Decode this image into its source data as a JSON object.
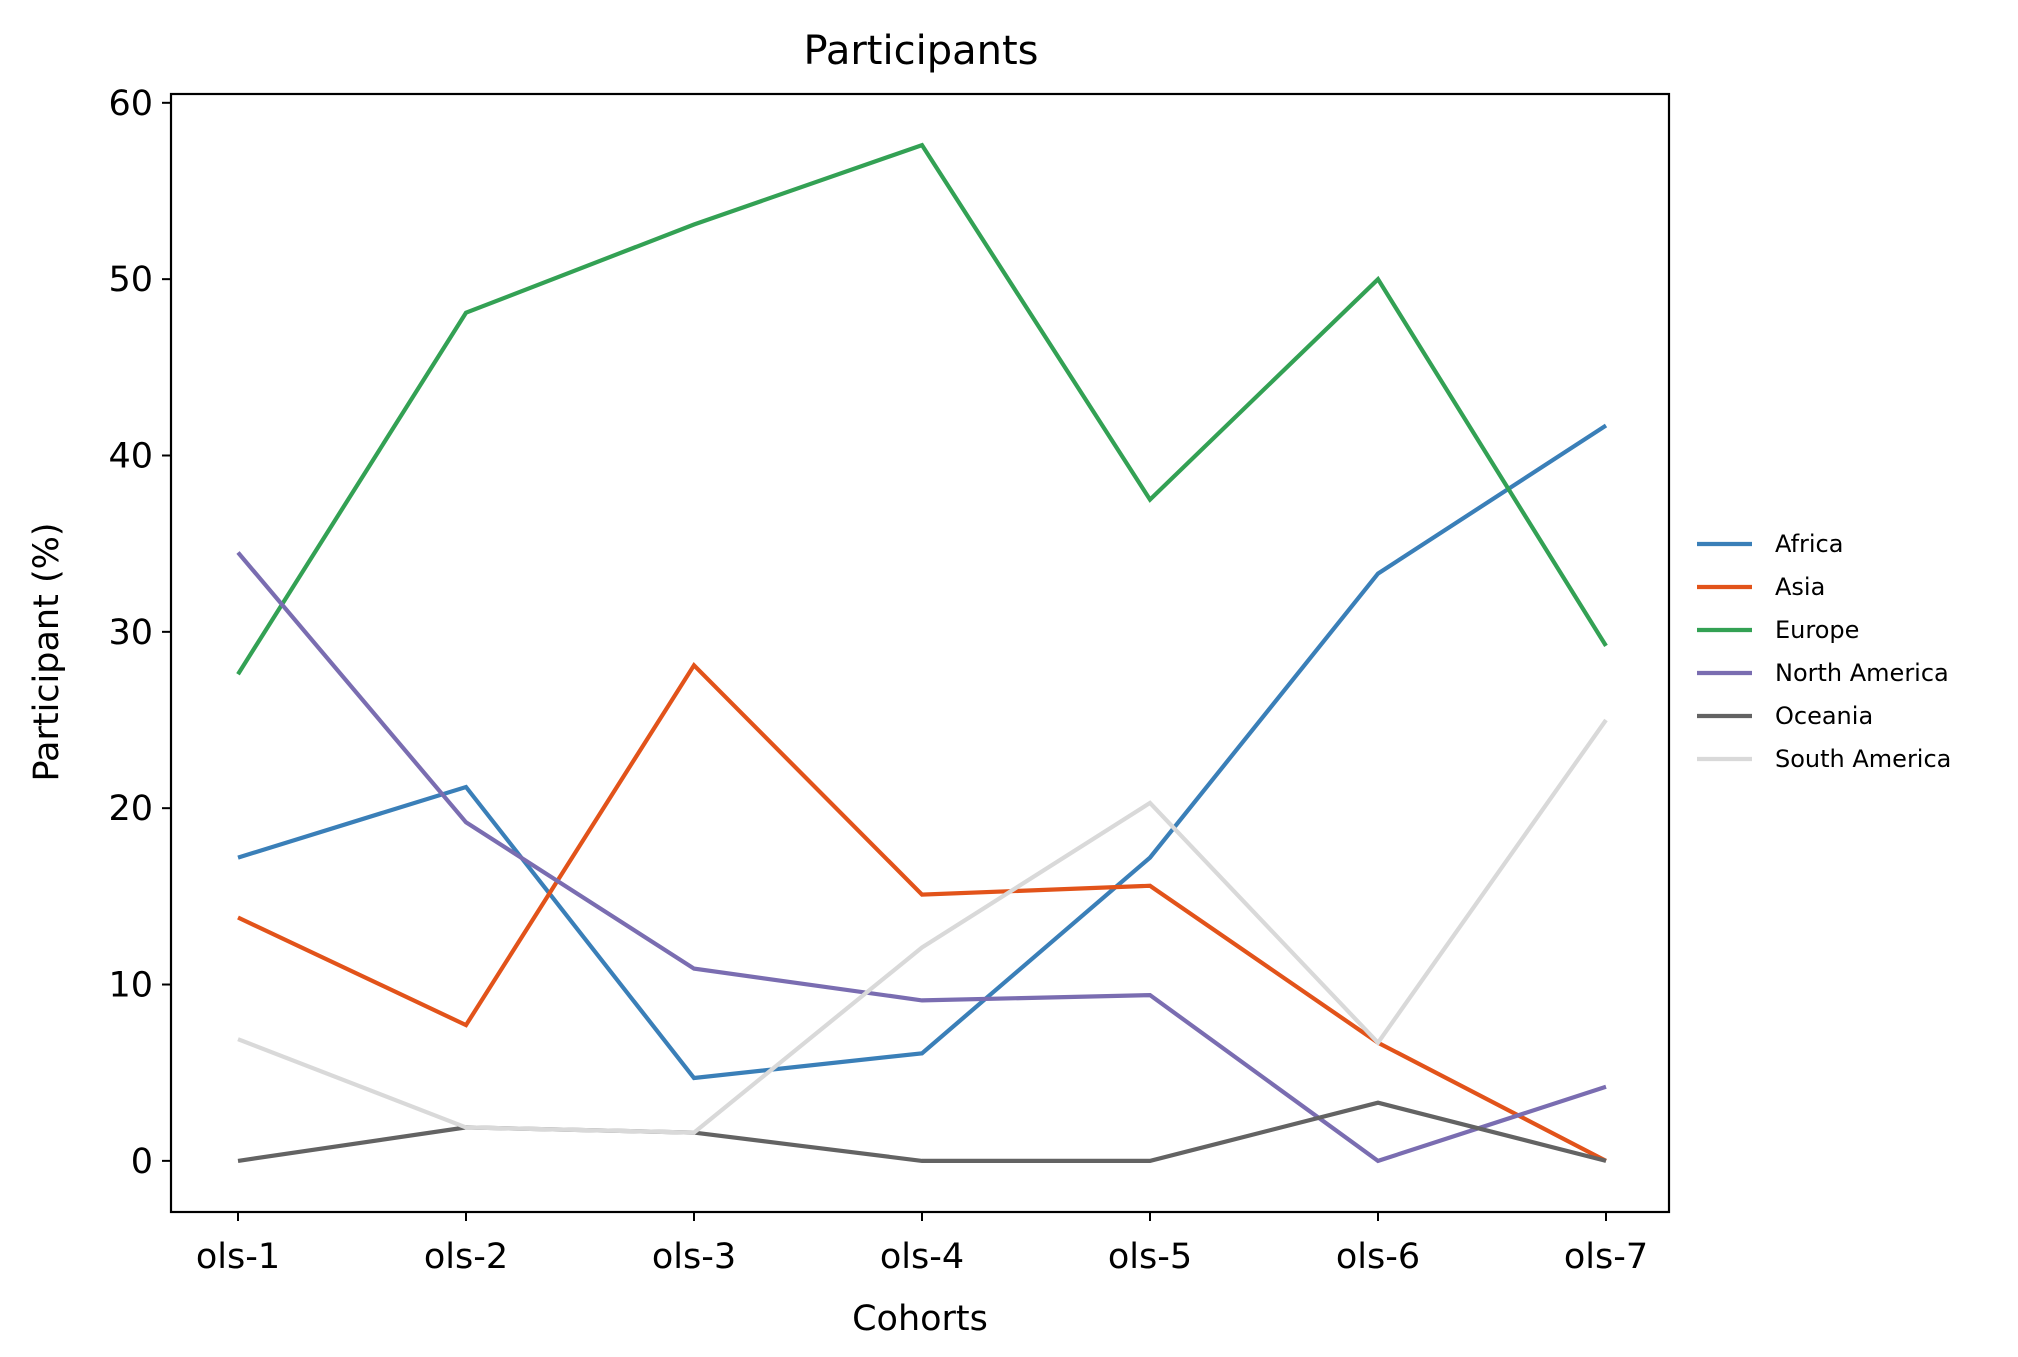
{
  "chart_data": {
    "type": "line",
    "title": "Participants",
    "xlabel": "Cohorts",
    "ylabel": "Participant (%)",
    "categories": [
      "ols-1",
      "ols-2",
      "ols-3",
      "ols-4",
      "ols-5",
      "ols-6",
      "ols-7"
    ],
    "ylim": [
      -2.9,
      60.5
    ],
    "yticks": [
      0,
      10,
      20,
      30,
      40,
      50,
      60
    ],
    "grid": false,
    "legend_position": "right",
    "series": [
      {
        "name": "Africa",
        "color": "#3a7fb8",
        "values": [
          17.2,
          21.2,
          4.7,
          6.1,
          17.2,
          33.3,
          41.7
        ]
      },
      {
        "name": "Asia",
        "color": "#e2531a",
        "values": [
          13.8,
          7.7,
          28.1,
          15.1,
          15.6,
          6.7,
          0.0
        ]
      },
      {
        "name": "Europe",
        "color": "#33a154",
        "values": [
          27.6,
          48.1,
          53.1,
          57.6,
          37.5,
          50.0,
          29.2
        ]
      },
      {
        "name": "North America",
        "color": "#7a6db1",
        "values": [
          34.5,
          19.2,
          10.9,
          9.1,
          9.4,
          0.0,
          4.2
        ]
      },
      {
        "name": "Oceania",
        "color": "#636363",
        "values": [
          0.0,
          1.9,
          1.6,
          0.0,
          0.0,
          3.3,
          0.0
        ]
      },
      {
        "name": "South America",
        "color": "#d9d9d9",
        "values": [
          6.9,
          1.9,
          1.6,
          12.1,
          20.3,
          6.7,
          25.0
        ]
      }
    ]
  }
}
